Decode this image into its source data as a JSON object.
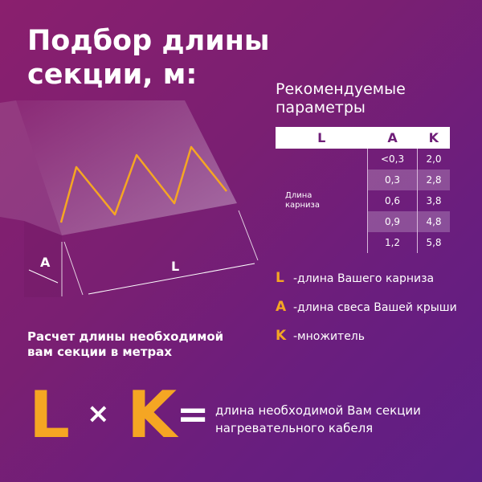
{
  "title_line1": "Подбор длины",
  "title_line2": "секции, м:",
  "recommended": {
    "line1": "Рекомендуемые",
    "line2": "параметры"
  },
  "table": {
    "headers": [
      "L",
      "A",
      "K"
    ],
    "row_label_line1": "Длина",
    "row_label_line2": "карниза",
    "rows": [
      {
        "A": "<0,3",
        "K": "2,0"
      },
      {
        "A": "0,3",
        "K": "2,8"
      },
      {
        "A": "0,6",
        "K": "3,8"
      },
      {
        "A": "0,9",
        "K": "4,8"
      },
      {
        "A": "1,2",
        "K": "5,8"
      }
    ]
  },
  "legend": [
    {
      "letter": "L",
      "text": "-длина Вашего карниза"
    },
    {
      "letter": "A",
      "text": "-длина свеса Вашей крыши"
    },
    {
      "letter": "K",
      "text": "-множитель"
    }
  ],
  "diagram": {
    "label_a": "A",
    "label_l": "L"
  },
  "calc_title_line1": "Расчет длины необходимой",
  "calc_title_line2": "вам секции в метрах",
  "formula": {
    "l": "L",
    "times": "×",
    "k": "K",
    "equals": "=",
    "desc_line1": "длина необходимой Вам секции",
    "desc_line2": "нагревательного кабеля"
  },
  "colors": {
    "accent": "#f5a623",
    "background": "#7a1f72"
  }
}
